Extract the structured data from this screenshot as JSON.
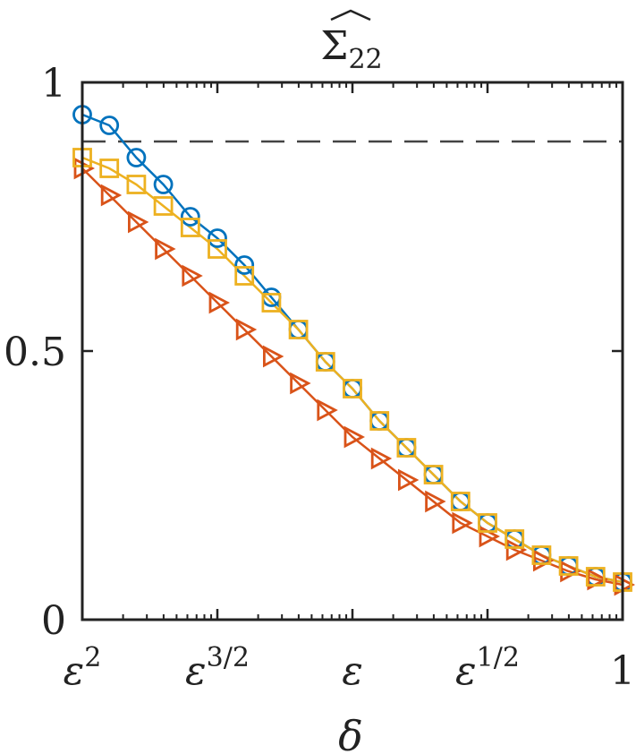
{
  "chart_data": {
    "type": "line",
    "title": "Σ̂22",
    "title_parts": {
      "symbol": "Σ",
      "subscript": "22"
    },
    "xlabel": "δ",
    "ylabel": "",
    "x_scale": "log",
    "x_ticks": [
      {
        "label": "ε",
        "sup": "2",
        "pos": 0
      },
      {
        "label": "ε",
        "sup": "3/2",
        "pos": 1
      },
      {
        "label": "ε",
        "sup": "",
        "pos": 2
      },
      {
        "label": "ε",
        "sup": "1/2",
        "pos": 3
      },
      {
        "label": "1",
        "sup": "",
        "pos": 4
      }
    ],
    "xlim": [
      0,
      4
    ],
    "ylim": [
      0,
      1
    ],
    "y_ticks": [
      {
        "label": "0",
        "value": 0
      },
      {
        "label": "0.5",
        "value": 0.5
      },
      {
        "label": "1",
        "value": 1
      }
    ],
    "reference_line": {
      "y": 0.89,
      "style": "dashed",
      "color": "#444444"
    },
    "series": [
      {
        "marker": "circle",
        "color": "#0072BD",
        "x": [
          0,
          0.2,
          0.4,
          0.6,
          0.8,
          1.0,
          1.2,
          1.4,
          1.6,
          1.8,
          2.0,
          2.2,
          2.4,
          2.6,
          2.8,
          3.0,
          3.2,
          3.4,
          3.6,
          3.8,
          4.0
        ],
        "y": [
          0.94,
          0.92,
          0.86,
          0.81,
          0.75,
          0.71,
          0.66,
          0.6,
          0.54,
          0.48,
          0.43,
          0.37,
          0.32,
          0.27,
          0.22,
          0.18,
          0.15,
          0.12,
          0.1,
          0.08,
          0.07
        ]
      },
      {
        "marker": "triangle-right",
        "color": "#D95319",
        "x": [
          0,
          0.2,
          0.4,
          0.6,
          0.8,
          1.0,
          1.2,
          1.4,
          1.6,
          1.8,
          2.0,
          2.2,
          2.4,
          2.6,
          2.8,
          3.0,
          3.2,
          3.4,
          3.6,
          3.8,
          4.0
        ],
        "y": [
          0.84,
          0.79,
          0.74,
          0.69,
          0.64,
          0.59,
          0.54,
          0.49,
          0.44,
          0.39,
          0.34,
          0.3,
          0.26,
          0.22,
          0.18,
          0.155,
          0.13,
          0.11,
          0.09,
          0.075,
          0.065
        ]
      },
      {
        "marker": "square",
        "color": "#EDB120",
        "x": [
          0,
          0.2,
          0.4,
          0.6,
          0.8,
          1.0,
          1.2,
          1.4,
          1.6,
          1.8,
          2.0,
          2.2,
          2.4,
          2.6,
          2.8,
          3.0,
          3.2,
          3.4,
          3.6,
          3.8,
          4.0
        ],
        "y": [
          0.86,
          0.84,
          0.81,
          0.77,
          0.73,
          0.69,
          0.64,
          0.59,
          0.54,
          0.48,
          0.43,
          0.37,
          0.32,
          0.27,
          0.22,
          0.18,
          0.15,
          0.12,
          0.1,
          0.08,
          0.07
        ]
      }
    ],
    "grid": false,
    "legend": "none"
  }
}
